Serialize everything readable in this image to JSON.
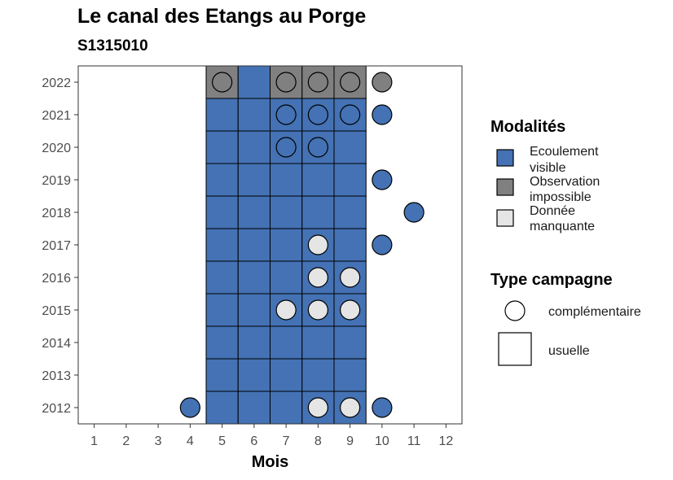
{
  "chart_data": {
    "type": "heatmap",
    "title": "Le canal des Etangs au Porge",
    "subtitle": "S1315010",
    "xlabel": "Mois",
    "ylabel": "",
    "x_ticks": [
      "1",
      "2",
      "3",
      "4",
      "5",
      "6",
      "7",
      "8",
      "9",
      "10",
      "11",
      "12"
    ],
    "y_ticks": [
      "2012",
      "2013",
      "2014",
      "2015",
      "2016",
      "2017",
      "2018",
      "2019",
      "2020",
      "2021",
      "2022"
    ],
    "xlim": [
      0.5,
      12.5
    ],
    "ylim": [
      2011.5,
      2022.5
    ],
    "colors": {
      "ecoulement_visible": "#4472b4",
      "observation_impossible": "#808080",
      "donnee_manquante": "#e5e5e5"
    },
    "legend_modalites": {
      "title": "Modalités",
      "items": [
        {
          "key": "ecoulement_visible",
          "label_lines": [
            "Ecoulement",
            "visible"
          ]
        },
        {
          "key": "observation_impossible",
          "label_lines": [
            "Observation",
            "impossible"
          ]
        },
        {
          "key": "donnee_manquante",
          "label_lines": [
            "Donnée",
            "manquante"
          ]
        }
      ]
    },
    "legend_type": {
      "title": "Type campagne",
      "items": [
        {
          "shape": "circle",
          "label": "complémentaire"
        },
        {
          "shape": "square",
          "label": "usuelle"
        }
      ]
    },
    "tiles": [
      {
        "year": 2012,
        "month": 5,
        "value": "ecoulement_visible"
      },
      {
        "year": 2012,
        "month": 6,
        "value": "ecoulement_visible"
      },
      {
        "year": 2012,
        "month": 7,
        "value": "ecoulement_visible"
      },
      {
        "year": 2012,
        "month": 8,
        "value": "ecoulement_visible"
      },
      {
        "year": 2012,
        "month": 9,
        "value": "ecoulement_visible"
      },
      {
        "year": 2013,
        "month": 5,
        "value": "ecoulement_visible"
      },
      {
        "year": 2013,
        "month": 6,
        "value": "ecoulement_visible"
      },
      {
        "year": 2013,
        "month": 7,
        "value": "ecoulement_visible"
      },
      {
        "year": 2013,
        "month": 8,
        "value": "ecoulement_visible"
      },
      {
        "year": 2013,
        "month": 9,
        "value": "ecoulement_visible"
      },
      {
        "year": 2014,
        "month": 5,
        "value": "ecoulement_visible"
      },
      {
        "year": 2014,
        "month": 6,
        "value": "ecoulement_visible"
      },
      {
        "year": 2014,
        "month": 7,
        "value": "ecoulement_visible"
      },
      {
        "year": 2014,
        "month": 8,
        "value": "ecoulement_visible"
      },
      {
        "year": 2014,
        "month": 9,
        "value": "ecoulement_visible"
      },
      {
        "year": 2015,
        "month": 5,
        "value": "ecoulement_visible"
      },
      {
        "year": 2015,
        "month": 6,
        "value": "ecoulement_visible"
      },
      {
        "year": 2015,
        "month": 7,
        "value": "ecoulement_visible"
      },
      {
        "year": 2015,
        "month": 8,
        "value": "ecoulement_visible"
      },
      {
        "year": 2015,
        "month": 9,
        "value": "ecoulement_visible"
      },
      {
        "year": 2016,
        "month": 5,
        "value": "ecoulement_visible"
      },
      {
        "year": 2016,
        "month": 6,
        "value": "ecoulement_visible"
      },
      {
        "year": 2016,
        "month": 7,
        "value": "ecoulement_visible"
      },
      {
        "year": 2016,
        "month": 8,
        "value": "ecoulement_visible"
      },
      {
        "year": 2016,
        "month": 9,
        "value": "ecoulement_visible"
      },
      {
        "year": 2017,
        "month": 5,
        "value": "ecoulement_visible"
      },
      {
        "year": 2017,
        "month": 6,
        "value": "ecoulement_visible"
      },
      {
        "year": 2017,
        "month": 7,
        "value": "ecoulement_visible"
      },
      {
        "year": 2017,
        "month": 8,
        "value": "ecoulement_visible"
      },
      {
        "year": 2017,
        "month": 9,
        "value": "ecoulement_visible"
      },
      {
        "year": 2018,
        "month": 5,
        "value": "ecoulement_visible"
      },
      {
        "year": 2018,
        "month": 6,
        "value": "ecoulement_visible"
      },
      {
        "year": 2018,
        "month": 7,
        "value": "ecoulement_visible"
      },
      {
        "year": 2018,
        "month": 8,
        "value": "ecoulement_visible"
      },
      {
        "year": 2018,
        "month": 9,
        "value": "ecoulement_visible"
      },
      {
        "year": 2019,
        "month": 5,
        "value": "ecoulement_visible"
      },
      {
        "year": 2019,
        "month": 6,
        "value": "ecoulement_visible"
      },
      {
        "year": 2019,
        "month": 7,
        "value": "ecoulement_visible"
      },
      {
        "year": 2019,
        "month": 8,
        "value": "ecoulement_visible"
      },
      {
        "year": 2019,
        "month": 9,
        "value": "ecoulement_visible"
      },
      {
        "year": 2020,
        "month": 5,
        "value": "ecoulement_visible"
      },
      {
        "year": 2020,
        "month": 6,
        "value": "ecoulement_visible"
      },
      {
        "year": 2020,
        "month": 7,
        "value": "ecoulement_visible"
      },
      {
        "year": 2020,
        "month": 8,
        "value": "ecoulement_visible"
      },
      {
        "year": 2020,
        "month": 9,
        "value": "ecoulement_visible"
      },
      {
        "year": 2021,
        "month": 5,
        "value": "ecoulement_visible"
      },
      {
        "year": 2021,
        "month": 6,
        "value": "ecoulement_visible"
      },
      {
        "year": 2021,
        "month": 7,
        "value": "ecoulement_visible"
      },
      {
        "year": 2021,
        "month": 8,
        "value": "ecoulement_visible"
      },
      {
        "year": 2021,
        "month": 9,
        "value": "ecoulement_visible"
      },
      {
        "year": 2022,
        "month": 5,
        "value": "observation_impossible"
      },
      {
        "year": 2022,
        "month": 6,
        "value": "ecoulement_visible"
      },
      {
        "year": 2022,
        "month": 7,
        "value": "observation_impossible"
      },
      {
        "year": 2022,
        "month": 8,
        "value": "observation_impossible"
      },
      {
        "year": 2022,
        "month": 9,
        "value": "observation_impossible"
      }
    ],
    "points": [
      {
        "year": 2012,
        "month": 4,
        "value": "ecoulement_visible"
      },
      {
        "year": 2012,
        "month": 8,
        "value": "donnee_manquante"
      },
      {
        "year": 2012,
        "month": 9,
        "value": "donnee_manquante"
      },
      {
        "year": 2012,
        "month": 10,
        "value": "ecoulement_visible"
      },
      {
        "year": 2015,
        "month": 7,
        "value": "donnee_manquante"
      },
      {
        "year": 2015,
        "month": 8,
        "value": "donnee_manquante"
      },
      {
        "year": 2015,
        "month": 9,
        "value": "donnee_manquante"
      },
      {
        "year": 2016,
        "month": 8,
        "value": "donnee_manquante"
      },
      {
        "year": 2016,
        "month": 9,
        "value": "donnee_manquante"
      },
      {
        "year": 2017,
        "month": 8,
        "value": "donnee_manquante"
      },
      {
        "year": 2017,
        "month": 10,
        "value": "ecoulement_visible"
      },
      {
        "year": 2018,
        "month": 11,
        "value": "ecoulement_visible"
      },
      {
        "year": 2019,
        "month": 10,
        "value": "ecoulement_visible"
      },
      {
        "year": 2020,
        "month": 7,
        "value": "ecoulement_visible"
      },
      {
        "year": 2020,
        "month": 8,
        "value": "ecoulement_visible"
      },
      {
        "year": 2021,
        "month": 7,
        "value": "ecoulement_visible"
      },
      {
        "year": 2021,
        "month": 8,
        "value": "ecoulement_visible"
      },
      {
        "year": 2021,
        "month": 9,
        "value": "ecoulement_visible"
      },
      {
        "year": 2021,
        "month": 10,
        "value": "ecoulement_visible"
      },
      {
        "year": 2022,
        "month": 5,
        "value": "observation_impossible"
      },
      {
        "year": 2022,
        "month": 7,
        "value": "observation_impossible"
      },
      {
        "year": 2022,
        "month": 8,
        "value": "observation_impossible"
      },
      {
        "year": 2022,
        "month": 9,
        "value": "observation_impossible"
      },
      {
        "year": 2022,
        "month": 10,
        "value": "observation_impossible"
      }
    ]
  }
}
